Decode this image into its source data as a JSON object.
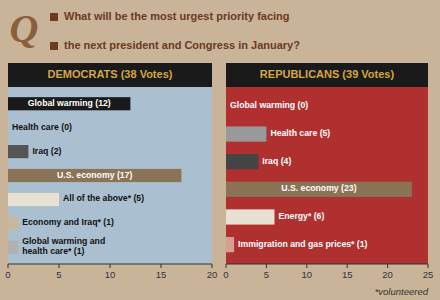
{
  "title": "What will be the most urgest priority facing",
  "subtitle": "the next president and Congress in January?",
  "annotations": [
    "Q",
    "*volunteered"
  ],
  "chart_data": [
    {
      "type": "bar",
      "orientation": "horizontal",
      "title": "DEMOCRATS (38 Votes)",
      "categories": [
        "Global warming (12)",
        "Health care (0)",
        "Iraq (2)",
        "U.S. economy (17)",
        "All of the above* (5)",
        "Economy and Iraq* (1)",
        "Global warming and\nhealth care* (1)"
      ],
      "values": [
        12,
        0,
        2,
        17,
        5,
        1,
        1
      ],
      "colors": [
        "#1a1a1a",
        "#aabfcf",
        "#555555",
        "#8b7355",
        "#e8e0d0",
        "#c8b89a",
        "#b0b0b0"
      ],
      "xlim": [
        0,
        20
      ],
      "xticks": [
        0,
        5,
        10,
        15,
        20
      ],
      "grid": false
    },
    {
      "type": "bar",
      "orientation": "horizontal",
      "title": "REPUBLICANS (39 Votes)",
      "categories": [
        "Global warming (0)",
        "Health care (5)",
        "Iraq (4)",
        "U.S. economy (23)",
        "Energy* (6)",
        "Immigration and gas prices* (1)"
      ],
      "values": [
        0,
        5,
        4,
        23,
        6,
        1
      ],
      "colors": [
        "#b03030",
        "#999999",
        "#444444",
        "#8b7355",
        "#e8e0d0",
        "#d4a090"
      ],
      "xlim": [
        0,
        25
      ],
      "xticks": [
        0,
        5,
        10,
        15,
        20,
        25
      ],
      "grid": false
    }
  ]
}
